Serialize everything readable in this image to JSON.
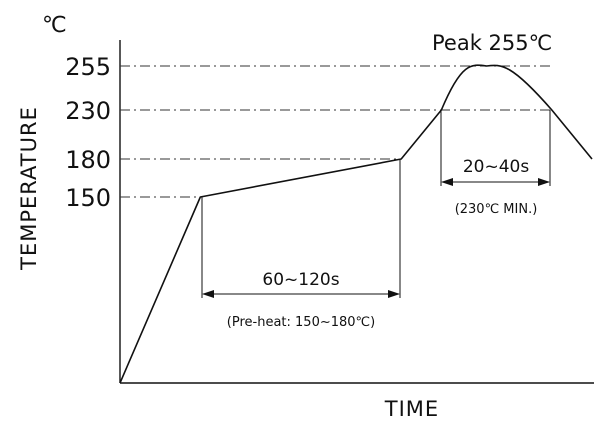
{
  "chart_data": {
    "type": "line",
    "unit_label": "℃",
    "xlabel": "TIME",
    "ylabel": "TEMPERATURE",
    "y_ticks": [
      "150",
      "180",
      "230",
      "255"
    ],
    "series": [
      {
        "points": [
          {
            "x": 0,
            "y": 25
          },
          {
            "x": 80,
            "y": 150
          },
          {
            "x": 280,
            "y": 180
          },
          {
            "x": 320,
            "y": 230
          },
          {
            "x": 350,
            "y": 255
          },
          {
            "x": 380,
            "y": 255
          },
          {
            "x": 430,
            "y": 230
          },
          {
            "x": 470,
            "y": 180
          }
        ]
      }
    ],
    "annotations": {
      "peak_label": "Peak 255℃",
      "preheat_duration": "60~120s",
      "preheat_note": "(Pre-heat: 150~180℃)",
      "reflow_duration": "20~40s",
      "reflow_note": "(230℃ MIN.)"
    }
  }
}
